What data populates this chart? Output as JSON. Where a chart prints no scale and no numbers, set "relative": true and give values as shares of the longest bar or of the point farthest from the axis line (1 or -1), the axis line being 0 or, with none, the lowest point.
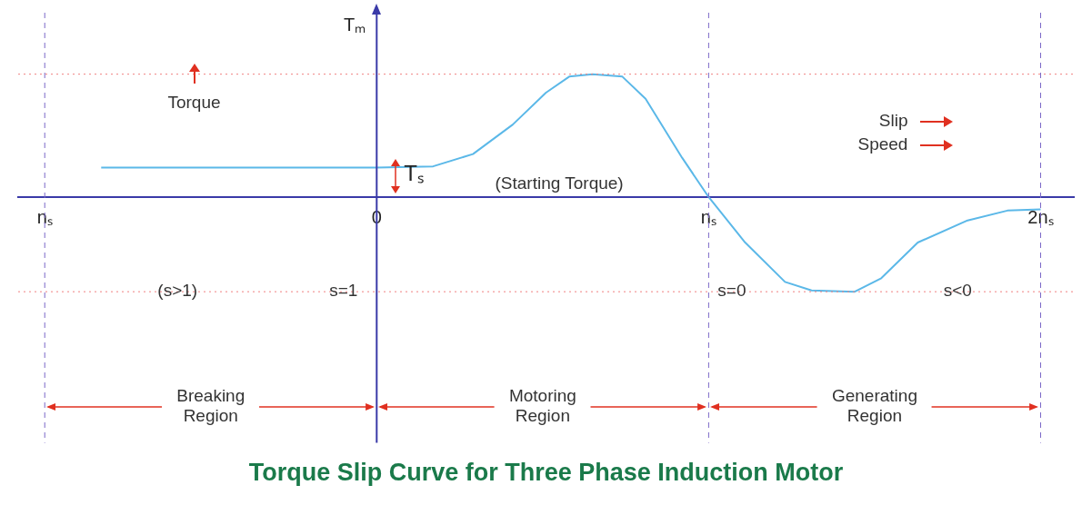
{
  "chart_data": {
    "type": "line",
    "title": "Torque Slip Curve for Three Phase Induction Motor",
    "ylabel": "Tₘ",
    "relative": true,
    "x": [
      -0.83,
      0,
      0.17,
      0.29,
      0.41,
      0.51,
      0.58,
      0.65,
      0.74,
      0.81,
      0.92,
      1,
      1.11,
      1.23,
      1.31,
      1.44,
      1.52,
      1.63,
      1.78,
      1.9,
      2
    ],
    "series": [
      {
        "color": "#5bb8e8",
        "values": [
          0.24,
          0.24,
          0.25,
          0.35,
          0.59,
          0.85,
          0.98,
          1,
          0.98,
          0.8,
          0.32,
          0,
          -0.37,
          -0.69,
          -0.76,
          -0.77,
          -0.66,
          -0.37,
          -0.19,
          -0.11,
          -0.1
        ]
      }
    ],
    "xlim": [
      -1.08,
      2.1
    ],
    "xticks": [
      {
        "value": -1,
        "label": "nₛ"
      },
      0,
      {
        "value": 1,
        "label": "nₛ"
      },
      {
        "value": 2,
        "label": "2nₛ"
      }
    ],
    "grid": false,
    "legend": false,
    "marker": "none",
    "line_style": "solid",
    "ref_lines": [
      {
        "axis": "x",
        "value": 0,
        "color": "#3a3aa8",
        "line_style": "solid"
      },
      {
        "axis": "x",
        "value": -1,
        "color": "#7b68c8",
        "line_style": "dashed"
      },
      {
        "axis": "x",
        "value": 1,
        "color": "#7b68c8",
        "line_style": "dashed"
      },
      {
        "axis": "x",
        "value": 2,
        "color": "#7b68c8",
        "line_style": "dashed"
      },
      {
        "axis": "y",
        "value": 1,
        "color": "#f08080",
        "line_style": "dotted"
      },
      {
        "axis": "y",
        "value": -0.77,
        "color": "#f08080",
        "line_style": "dotted"
      }
    ],
    "annotations": [
      "Torque",
      "Slip",
      "Speed",
      "Tₛ",
      "(Starting Torque)",
      "Breaking Region",
      "Motoring Region",
      "Generating Region",
      {
        "text": "(s>1)",
        "x": -0.6,
        "y": -0.77
      },
      {
        "text": "s=1",
        "x": -0.1,
        "y": -0.77
      },
      {
        "text": "s=0",
        "x": 1.07,
        "y": -0.77
      },
      {
        "text": "s<0",
        "x": 1.75,
        "y": -0.77
      }
    ]
  }
}
